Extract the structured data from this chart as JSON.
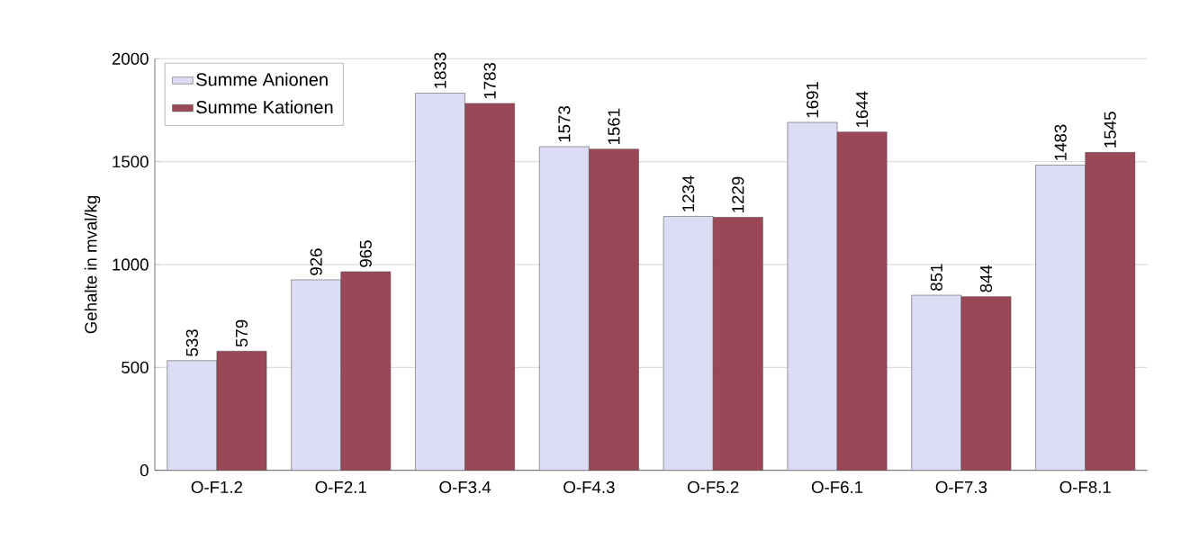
{
  "chart_data": {
    "type": "bar",
    "ylabel": "Gehalte in mval/kg",
    "categories": [
      "O-F1.2",
      "O-F2.1",
      "O-F3.4",
      "O-F4.3",
      "O-F5.2",
      "O-F6.1",
      "O-F7.3",
      "O-F8.1"
    ],
    "series": [
      {
        "name": "Summe Anionen",
        "color": "#dcdcf4",
        "values": [
          533,
          926,
          1833,
          1573,
          1234,
          1691,
          851,
          1483
        ]
      },
      {
        "name": "Summe Kationen",
        "color": "#9a4858",
        "values": [
          579,
          965,
          1783,
          1561,
          1229,
          1644,
          844,
          1545
        ]
      }
    ],
    "ylim": [
      0,
      2000
    ],
    "yticks": [
      0,
      500,
      1000,
      1500,
      2000
    ],
    "grid": "y",
    "legend": "top left",
    "data_labels": true
  }
}
